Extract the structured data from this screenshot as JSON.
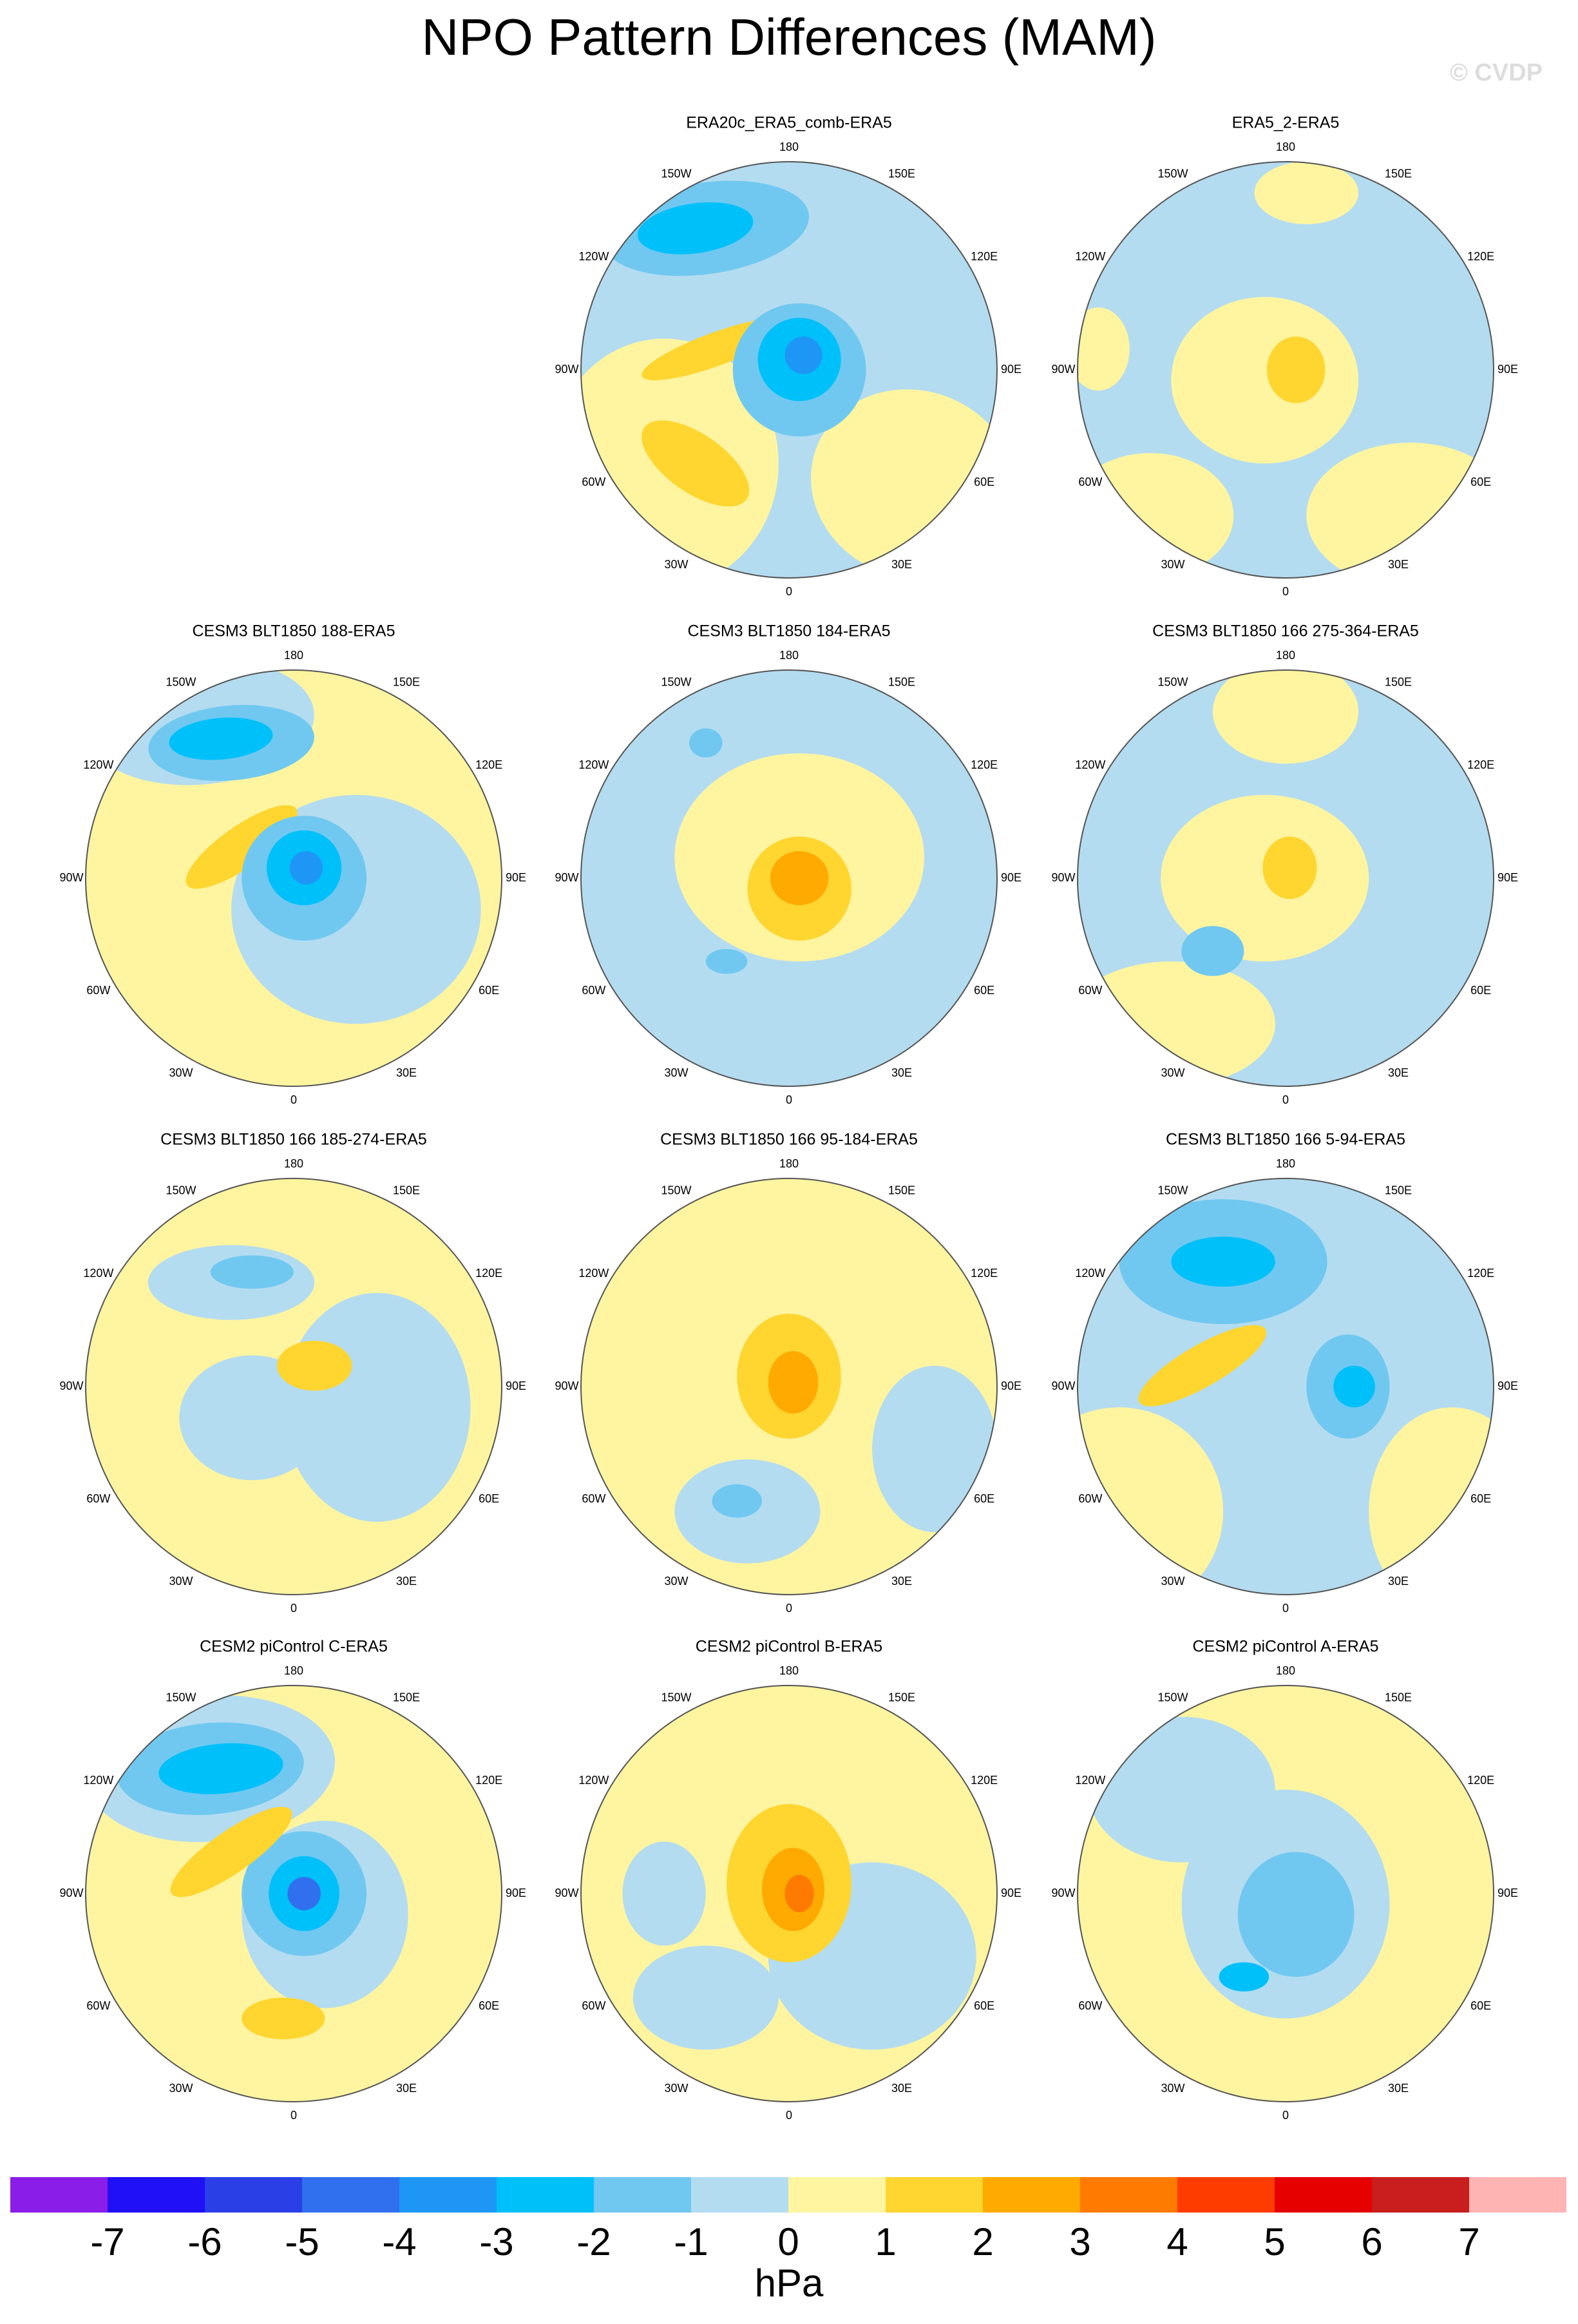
{
  "title": "NPO Pattern Differences (MAM)",
  "watermark": "© CVDP",
  "lon_labels": [
    "180",
    "150E",
    "120E",
    "90E",
    "60E",
    "30E",
    "0",
    "30W",
    "60W",
    "90W",
    "120W",
    "150W"
  ],
  "panels": [
    {
      "title": "ERA20c_ERA5_comb-ERA5"
    },
    {
      "title": "ERA5_2-ERA5"
    },
    {
      "title": "CESM3 BLT1850 188-ERA5"
    },
    {
      "title": "CESM3 BLT1850 184-ERA5"
    },
    {
      "title": "CESM3 BLT1850 166 275-364-ERA5"
    },
    {
      "title": "CESM3 BLT1850 166 185-274-ERA5"
    },
    {
      "title": "CESM3 BLT1850 166 95-184-ERA5"
    },
    {
      "title": "CESM3 BLT1850 166 5-94-ERA5"
    },
    {
      "title": "CESM2 piControl C-ERA5"
    },
    {
      "title": "CESM2 piControl B-ERA5"
    },
    {
      "title": "CESM2 piControl A-ERA5"
    }
  ],
  "colorbar": {
    "levels": [
      -7,
      -6,
      -5,
      -4,
      -3,
      -2,
      -1,
      0,
      1,
      2,
      3,
      4,
      5,
      6,
      7
    ],
    "colors": [
      "#8a1ee8",
      "#2010f5",
      "#2a40e6",
      "#3070ee",
      "#1e96f5",
      "#00c0fa",
      "#70c8f0",
      "#b4dcf0",
      "#fff5a0",
      "#ffd530",
      "#ffaa00",
      "#ff7a00",
      "#ff3c00",
      "#e60000",
      "#c81e1e",
      "#ffb4b4"
    ],
    "label": "hPa"
  }
}
